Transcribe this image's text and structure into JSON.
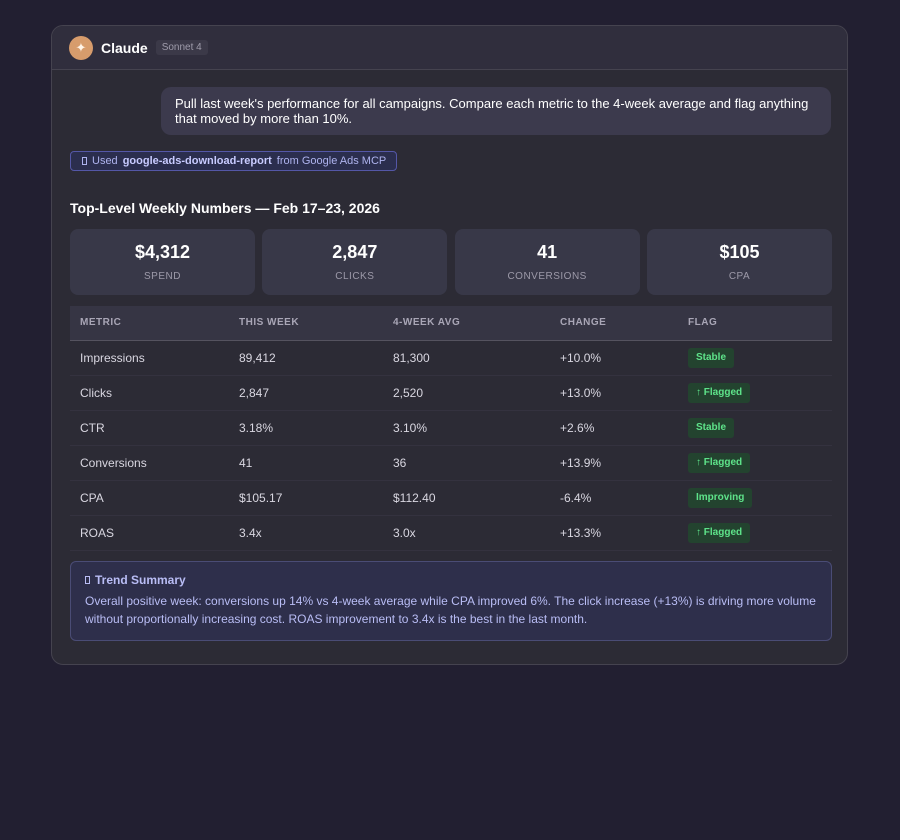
{
  "app": {
    "name": "Claude",
    "model_badge": "Sonnet 4",
    "avatar_icon": "sparkle-icon",
    "avatar_glyph": "✦"
  },
  "user_message": "Pull last week's performance for all campaigns. Compare each metric to the 4-week average and flag anything that moved by more than 10%.",
  "tool_use": {
    "prefix": "Used",
    "tool_name": "google-ads-download-report",
    "suffix": "from Google Ads MCP"
  },
  "report": {
    "title": "Top-Level Weekly Numbers — Feb 17–23, 2026",
    "kpis": [
      {
        "value": "$4,312",
        "label": "SPEND"
      },
      {
        "value": "2,847",
        "label": "CLICKS"
      },
      {
        "value": "41",
        "label": "CONVERSIONS"
      },
      {
        "value": "$105",
        "label": "CPA"
      }
    ],
    "table": {
      "headers": [
        "METRIC",
        "THIS WEEK",
        "4-WEEK AVG",
        "CHANGE",
        "FLAG"
      ],
      "rows": [
        {
          "metric": "Impressions",
          "this_week": "89,412",
          "avg": "81,300",
          "change": "+10.0%",
          "flag": "Stable"
        },
        {
          "metric": "Clicks",
          "this_week": "2,847",
          "avg": "2,520",
          "change": "+13.0%",
          "flag": "↑ Flagged"
        },
        {
          "metric": "CTR",
          "this_week": "3.18%",
          "avg": "3.10%",
          "change": "+2.6%",
          "flag": "Stable"
        },
        {
          "metric": "Conversions",
          "this_week": "41",
          "avg": "36",
          "change": "+13.9%",
          "flag": "↑ Flagged"
        },
        {
          "metric": "CPA",
          "this_week": "$105.17",
          "avg": "$112.40",
          "change": "-6.4%",
          "flag": "Improving"
        },
        {
          "metric": "ROAS",
          "this_week": "3.4x",
          "avg": "3.0x",
          "change": "+13.3%",
          "flag": "↑ Flagged"
        }
      ]
    },
    "trend": {
      "title": "Trend Summary",
      "text": "Overall positive week: conversions up 14% vs 4-week average while CPA improved 6%. The click increase (+13%) is driving more volume without proportionally increasing cost. ROAS improvement to 3.4x is the best in the last month."
    }
  },
  "colors": {
    "positive_change": "#4fd27a",
    "flag_text": "#5ee38a",
    "flag_bg": "#23432f",
    "tool_accent": "#aeb3ee"
  }
}
